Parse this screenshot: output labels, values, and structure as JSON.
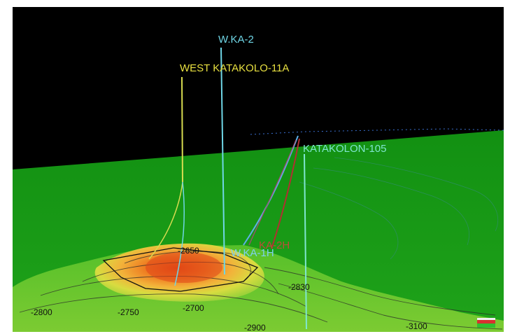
{
  "viewer": {
    "wells": [
      {
        "name": "W.KA-2",
        "color": "#6fd6e6"
      },
      {
        "name": "WEST KATAKOLO-11A",
        "color": "#e8e040"
      },
      {
        "name": "KATAKOLON-105",
        "color": "#7fe6d0"
      },
      {
        "name": "W.KA-1H",
        "color": "#7fd0f0"
      },
      {
        "name": "KA-2H",
        "color": "#d84040"
      }
    ],
    "contour_labels": [
      "-2650",
      "-2700",
      "-2800",
      "-2830",
      "-2900",
      "-3100",
      "-2750"
    ],
    "colors": {
      "background": "#000000",
      "surface_green": "#1f9a1a",
      "surface_dark": "#0c6e10",
      "structure_high": "#e8501a",
      "structure_mid": "#f0a830",
      "structure_flank": "#bfe040"
    },
    "icons": {
      "orientation": "axis-cube-icon"
    }
  }
}
